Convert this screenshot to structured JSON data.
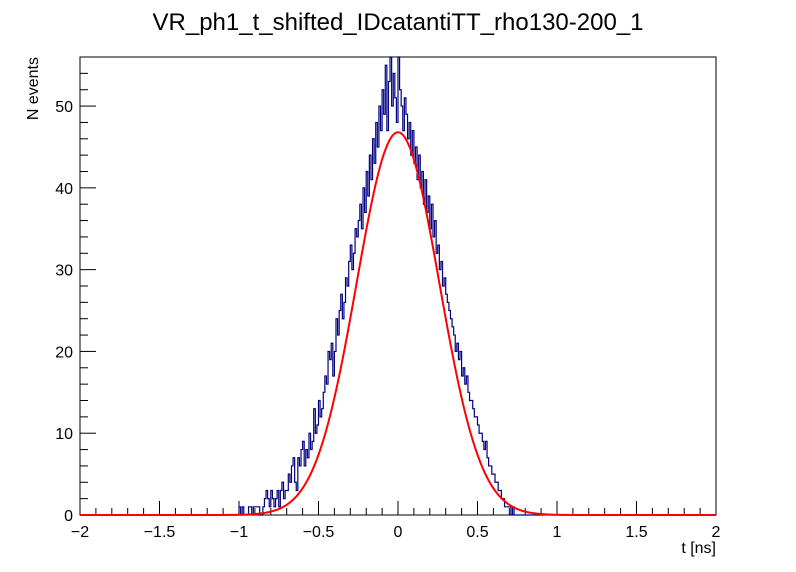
{
  "chart_data": {
    "type": "histogram",
    "title": "VR_ph1_t_shifted_IDcatantiTT_rho130-200_1",
    "xlabel": "t [ns]",
    "ylabel": "N events",
    "xlim": [
      -2,
      2
    ],
    "ylim": [
      0,
      56
    ],
    "x_ticks": [
      -2,
      -1.5,
      -1,
      -0.5,
      0,
      0.5,
      1,
      1.5,
      2
    ],
    "x_tick_labels": [
      "−2",
      "−1.5",
      "−1",
      "−0.5",
      "0",
      "0.5",
      "1",
      "1.5",
      "2"
    ],
    "y_ticks": [
      0,
      10,
      20,
      30,
      40,
      50
    ],
    "y_tick_labels": [
      "0",
      "10",
      "20",
      "30",
      "40",
      "50"
    ],
    "grid": false,
    "histogram": {
      "name": "",
      "color": "#000080",
      "bin_width": 0.01,
      "bins_x_low": -1.0,
      "counts": [
        1,
        0,
        1,
        0,
        0,
        0,
        1,
        1,
        0,
        1,
        1,
        1,
        1,
        0,
        0,
        1,
        2,
        3,
        2,
        1,
        3,
        2,
        1,
        2,
        3,
        1,
        3,
        4,
        2,
        3,
        3,
        5,
        4,
        6,
        7,
        4,
        3,
        7,
        6,
        8,
        9,
        6,
        8,
        7,
        10,
        8,
        9,
        13,
        10,
        11,
        14,
        12,
        13,
        15,
        17,
        16,
        20,
        19,
        21,
        17,
        20,
        24,
        22,
        25,
        27,
        24,
        26,
        29,
        28,
        31,
        33,
        30,
        32,
        35,
        34,
        36,
        38,
        35,
        40,
        37,
        42,
        39,
        44,
        41,
        46,
        43,
        48,
        45,
        50,
        47,
        52,
        49,
        55,
        47,
        53,
        56,
        50,
        54,
        51,
        48,
        56,
        52,
        50,
        47,
        51,
        49,
        46,
        48,
        44,
        47,
        43,
        45,
        41,
        44,
        40,
        42,
        38,
        41,
        37,
        39,
        35,
        38,
        34,
        36,
        32,
        33,
        30,
        31,
        28,
        29,
        27,
        26,
        25,
        24,
        23,
        22,
        20,
        21,
        19,
        20,
        17,
        18,
        16,
        17,
        15,
        14,
        14,
        13,
        12,
        12,
        11,
        10,
        10,
        9,
        8,
        9,
        7,
        6,
        6,
        5,
        5,
        4,
        4,
        3,
        3,
        2,
        2,
        1,
        1,
        1,
        1,
        0,
        1,
        0,
        0
      ]
    },
    "fit": {
      "name": "",
      "type": "gaussian",
      "color": "#ff0000",
      "amplitude": 46.8,
      "mean": 0.0,
      "sigma": 0.26
    }
  }
}
